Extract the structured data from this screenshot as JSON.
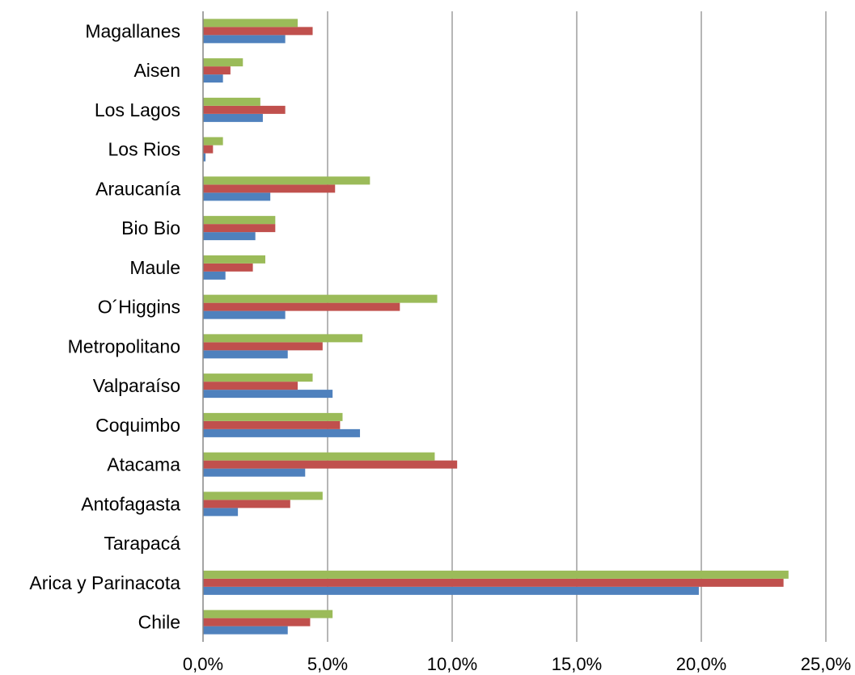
{
  "chart_data": {
    "type": "bar",
    "orientation": "horizontal",
    "categories": [
      "Chile",
      "Arica y Parinacota",
      "Tarapacá",
      "Antofagasta",
      "Atacama",
      "Coquimbo",
      "Valparaíso",
      "Metropolitano",
      "O´Higgins",
      "Maule",
      "Bio Bio",
      "Araucanía",
      "Los Rios",
      "Los Lagos",
      "Aisen",
      "Magallanes"
    ],
    "series": [
      {
        "color": "#4F81BD",
        "values": [
          3.4,
          19.9,
          0.0,
          1.4,
          4.1,
          6.3,
          5.2,
          3.4,
          3.3,
          0.9,
          2.1,
          2.7,
          0.1,
          2.4,
          0.8,
          3.3
        ]
      },
      {
        "color": "#C0504D",
        "values": [
          4.3,
          23.3,
          0.0,
          3.5,
          10.2,
          5.5,
          3.8,
          4.8,
          7.9,
          2.0,
          2.9,
          5.3,
          0.4,
          3.3,
          1.1,
          4.4
        ]
      },
      {
        "color": "#9BBB59",
        "values": [
          5.2,
          23.5,
          0.0,
          4.8,
          9.3,
          5.6,
          4.4,
          6.4,
          9.4,
          2.5,
          2.9,
          6.7,
          0.8,
          2.3,
          1.6,
          3.8
        ]
      }
    ],
    "xlim": [
      0,
      25
    ],
    "xticks": [
      "0,0%",
      "5,0%",
      "10,0%",
      "15,0%",
      "20,0%",
      "25,0%"
    ],
    "grid": true,
    "legend": "none"
  }
}
